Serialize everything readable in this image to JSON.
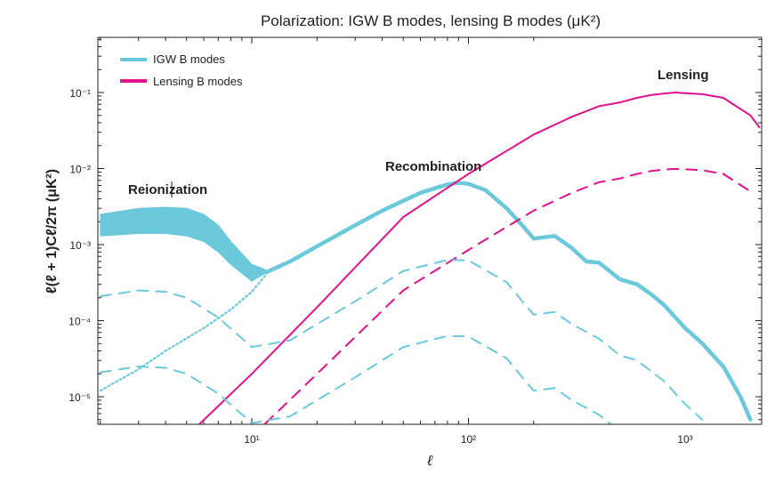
{
  "chart_data": {
    "type": "line",
    "title": "Polarization: IGW B modes, lensing B modes (μK²)",
    "xlabel": "ℓ",
    "ylabel": "ℓ(ℓ + 1)Cℓ/2π (μK²)",
    "x_scale": "log",
    "y_scale": "log",
    "xlim": [
      2,
      2200
    ],
    "ylim": [
      5e-06,
      0.5
    ],
    "x_ticks": [
      "10¹",
      "10²",
      "10³"
    ],
    "y_ticks": [
      "10⁻¹",
      "10⁻²",
      "10⁻³",
      "10⁻⁴",
      "10⁻⁵"
    ],
    "legend_position": "top-left",
    "annotations": [
      "Reionization",
      "Recombination",
      "Lensing"
    ],
    "colors": {
      "igw": "#6cc9dc",
      "lensing": "#e0118a"
    },
    "series": [
      {
        "name": "IGW B modes",
        "style": "thick-solid",
        "x": [
          12,
          15,
          20,
          30,
          40,
          60,
          80,
          90,
          100,
          120,
          150,
          180,
          200,
          250,
          300,
          350,
          400,
          500,
          600,
          700,
          800,
          1000,
          1200,
          1500,
          1800,
          2000
        ],
        "y": [
          0.00045,
          0.0006,
          0.00095,
          0.0018,
          0.0028,
          0.0048,
          0.0062,
          0.0065,
          0.0063,
          0.0052,
          0.003,
          0.0017,
          0.0012,
          0.0013,
          0.0009,
          0.0006,
          0.00058,
          0.00035,
          0.0003,
          0.00022,
          0.00016,
          8e-05,
          5e-05,
          2.5e-05,
          1e-05,
          5e-06
        ]
      },
      {
        "name": "Reionization band upper",
        "style": "band-edge",
        "x": [
          2,
          3,
          4,
          5,
          6,
          7,
          8,
          10,
          12
        ],
        "y": [
          0.0025,
          0.003,
          0.0031,
          0.003,
          0.0025,
          0.0018,
          0.0011,
          0.00055,
          0.00045
        ]
      },
      {
        "name": "Reionization band lower",
        "style": "band-edge",
        "x": [
          2,
          3,
          4,
          5,
          6,
          7,
          8,
          10,
          12
        ],
        "y": [
          0.0013,
          0.0014,
          0.0014,
          0.0013,
          0.0011,
          0.0008,
          0.00055,
          0.00033,
          0.00045
        ]
      },
      {
        "name": "IGW B modes (dotted extension)",
        "style": "dotted",
        "x": [
          2,
          3,
          4,
          6,
          8,
          10,
          12
        ],
        "y": [
          1.2e-05,
          2.3e-05,
          4e-05,
          8e-05,
          0.00014,
          0.00024,
          0.00045
        ]
      },
      {
        "name": "Lensing B modes",
        "style": "solid",
        "x": [
          5,
          10,
          20,
          50,
          100,
          200,
          300,
          400,
          500,
          600,
          700,
          800,
          900,
          1000,
          1200,
          1500,
          2000,
          2200
        ],
        "y": [
          3e-06,
          2e-05,
          0.00015,
          0.0023,
          0.0085,
          0.028,
          0.048,
          0.066,
          0.074,
          0.085,
          0.093,
          0.097,
          0.1,
          0.098,
          0.095,
          0.085,
          0.05,
          0.035
        ]
      },
      {
        "name": "Lensing B modes (dashed)",
        "style": "dashed",
        "x": [
          10,
          20,
          50,
          100,
          200,
          300,
          400,
          500,
          600,
          700,
          800,
          900,
          1000,
          1200,
          1500,
          2000
        ],
        "y": [
          3e-06,
          2e-05,
          0.00025,
          0.00085,
          0.0028,
          0.0048,
          0.0066,
          0.0074,
          0.0085,
          0.0093,
          0.0097,
          0.0099,
          0.0098,
          0.0095,
          0.0085,
          0.005
        ]
      },
      {
        "name": "IGW B modes (dashed, r lower)",
        "style": "dashed",
        "x": [
          2,
          3,
          4,
          5,
          7,
          10,
          15,
          20,
          30,
          50,
          80,
          100,
          150,
          180,
          200,
          250,
          300,
          400,
          500,
          600,
          800,
          1000,
          1200
        ],
        "y": [
          0.00021,
          0.00025,
          0.00024,
          0.0002,
          0.00011,
          4.5e-05,
          5.5e-05,
          9e-05,
          0.00018,
          0.00045,
          0.00063,
          0.00062,
          0.00032,
          0.00017,
          0.00012,
          0.00013,
          9e-05,
          5.8e-05,
          3.5e-05,
          3e-05,
          1.6e-05,
          8e-06,
          5e-06
        ]
      },
      {
        "name": "IGW B modes (dashed, r lowest)",
        "style": "dashed",
        "x": [
          2,
          3,
          4,
          5,
          7,
          10,
          15,
          20,
          30,
          50,
          80,
          100,
          150,
          180,
          200,
          250,
          300,
          400,
          500,
          600
        ],
        "y": [
          2.1e-05,
          2.5e-05,
          2.4e-05,
          2e-05,
          1.1e-05,
          4.5e-06,
          5.5e-06,
          9e-06,
          1.8e-05,
          4.5e-05,
          6.3e-05,
          6.2e-05,
          3.2e-05,
          1.7e-05,
          1.2e-05,
          1.3e-05,
          9e-06,
          5.8e-06,
          3.5e-06,
          3e-06
        ]
      }
    ]
  }
}
